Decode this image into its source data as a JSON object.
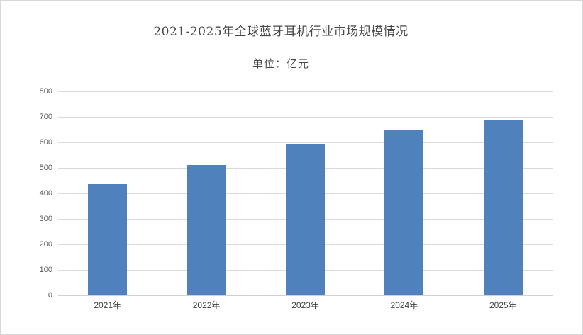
{
  "chart_data": {
    "type": "bar",
    "title": "2021-2025年全球蓝牙耳机行业市场规模情况",
    "subtitle": "单位：亿元",
    "categories": [
      "2021年",
      "2022年",
      "2023年",
      "2024年",
      "2025年"
    ],
    "values": [
      435,
      510,
      595,
      650,
      690
    ],
    "xlabel": "",
    "ylabel": "",
    "ylim": [
      0,
      800
    ],
    "yticks": [
      0,
      100,
      200,
      300,
      400,
      500,
      600,
      700,
      800
    ],
    "grid": true,
    "legend_position": "none",
    "bar_color": "#4f81bd"
  },
  "colors": {
    "bar": "#4f81bd",
    "gridline": "#d9d9d9",
    "axis_line": "#d0d0d0",
    "title_text": "#474747",
    "y_tick_text": "#595959",
    "x_tick_text": "#404040",
    "frame_border": "#d7d7d7",
    "background": "#ffffff"
  }
}
